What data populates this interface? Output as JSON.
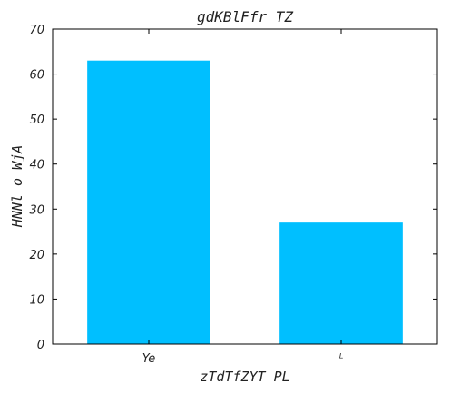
{
  "chart_data": {
    "type": "bar",
    "title": "gdKBlFfr TZ",
    "xlabel": "zTdTfZYT PL",
    "ylabel": "HNNl o WjA",
    "categories": [
      "Ye",
      "ᴸ"
    ],
    "values": [
      63,
      27
    ],
    "ylim": [
      0,
      70
    ],
    "yticks": [
      0,
      10,
      20,
      30,
      40,
      50,
      60,
      70
    ],
    "bar_color": "#00bfff",
    "grid": false
  }
}
